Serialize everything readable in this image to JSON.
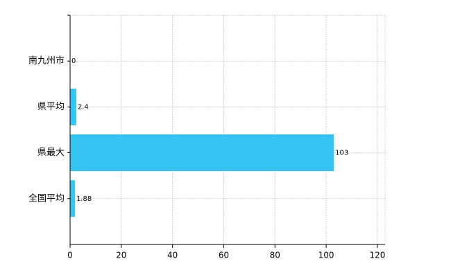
{
  "chart_data": {
    "type": "bar",
    "orientation": "horizontal",
    "categories": [
      "南九州市",
      "県平均",
      "県最大",
      "全国平均"
    ],
    "values": [
      0,
      2.4,
      103,
      1.88
    ],
    "color": "#33c4f2",
    "xlim": [
      0,
      123
    ],
    "xticks": [
      0,
      20,
      40,
      60,
      80,
      100,
      120
    ],
    "grid": true
  }
}
